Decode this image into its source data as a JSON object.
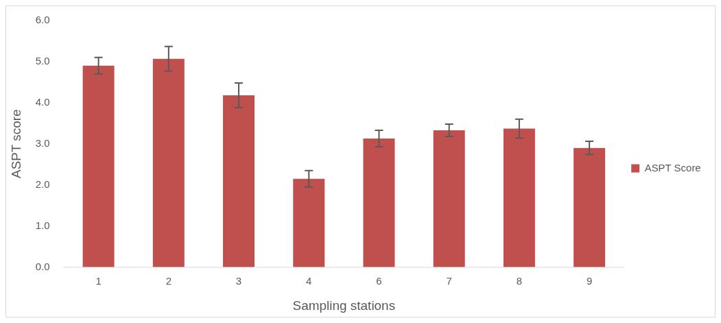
{
  "chart_data": {
    "type": "bar",
    "xlabel": "Sampling stations",
    "ylabel": "ASPT score",
    "categories": [
      "1",
      "2",
      "3",
      "4",
      "6",
      "7",
      "8",
      "9"
    ],
    "series": [
      {
        "name": "ASPT Score",
        "color": "#c0504d",
        "values": [
          4.9,
          5.07,
          4.18,
          2.15,
          3.13,
          3.33,
          3.37,
          2.9
        ],
        "errors": [
          0.2,
          0.3,
          0.3,
          0.2,
          0.2,
          0.15,
          0.23,
          0.16
        ]
      }
    ],
    "ylim": [
      0,
      6
    ],
    "yticks": [
      {
        "value": 0,
        "label": "0.0"
      },
      {
        "value": 1,
        "label": "1.0"
      },
      {
        "value": 2,
        "label": "2.0"
      },
      {
        "value": 3,
        "label": "3.0"
      },
      {
        "value": 4,
        "label": "4.0"
      },
      {
        "value": 5,
        "label": "5.0"
      },
      {
        "value": 6,
        "label": "6.0"
      }
    ],
    "grid": false,
    "legend": "right"
  }
}
